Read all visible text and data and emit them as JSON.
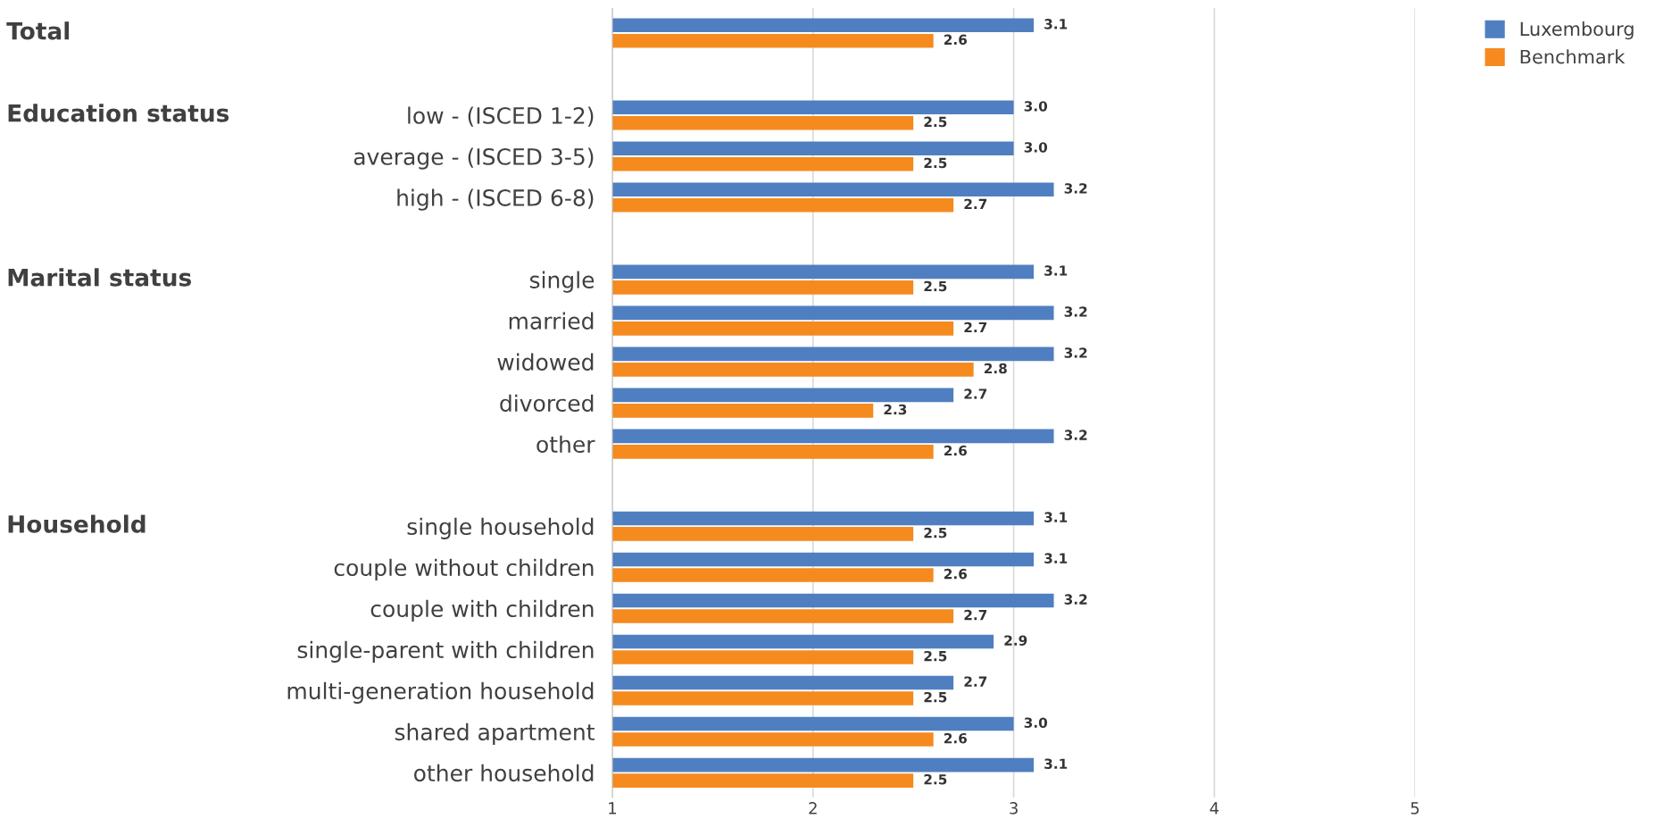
{
  "chart_data": {
    "type": "bar",
    "orientation": "horizontal",
    "categories": [
      null,
      null,
      "low - (ISCED 1-2)",
      "average - (ISCED 3-5)",
      "high - (ISCED 6-8)",
      null,
      "single",
      "married",
      "widowed",
      "divorced",
      "other",
      null,
      "single household",
      "couple without children",
      "couple with children",
      "single-parent with children",
      "multi-generation household",
      "shared apartment",
      "other household"
    ],
    "series": [
      {
        "name": "Luxembourg",
        "color": "#4f7fc0",
        "values": [
          3.1,
          null,
          3.0,
          3.0,
          3.2,
          null,
          3.1,
          3.2,
          3.2,
          2.7,
          3.2,
          null,
          3.1,
          3.1,
          3.2,
          2.9,
          2.7,
          3.0,
          3.1
        ],
        "value_labels": [
          "3.1",
          null,
          "3.0",
          "3.0",
          "3.2",
          null,
          "3.1",
          "3.2",
          "3.2",
          "2.7",
          "3.2",
          null,
          "3.1",
          "3.1",
          "3.2",
          "2.9",
          "2.7",
          "3.0",
          "3.1"
        ]
      },
      {
        "name": "Benchmark",
        "color": "#f58a1f",
        "values": [
          2.6,
          null,
          2.5,
          2.5,
          2.7,
          null,
          2.5,
          2.7,
          2.8,
          2.3,
          2.6,
          null,
          2.5,
          2.6,
          2.7,
          2.5,
          2.5,
          2.6,
          2.5
        ],
        "value_labels": [
          "2.6",
          null,
          "2.5",
          "2.5",
          "2.7",
          null,
          "2.5",
          "2.7",
          "2.8",
          "2.3",
          "2.6",
          null,
          "2.5",
          "2.6",
          "2.7",
          "2.5",
          "2.5",
          "2.6",
          "2.5"
        ]
      }
    ],
    "xlim": [
      1,
      5
    ],
    "xticks": [
      1,
      2,
      3,
      4,
      5
    ],
    "grid": "x",
    "legend": "top right",
    "annotations": [
      "Total",
      "Education status",
      "Marital status",
      "Household"
    ]
  }
}
